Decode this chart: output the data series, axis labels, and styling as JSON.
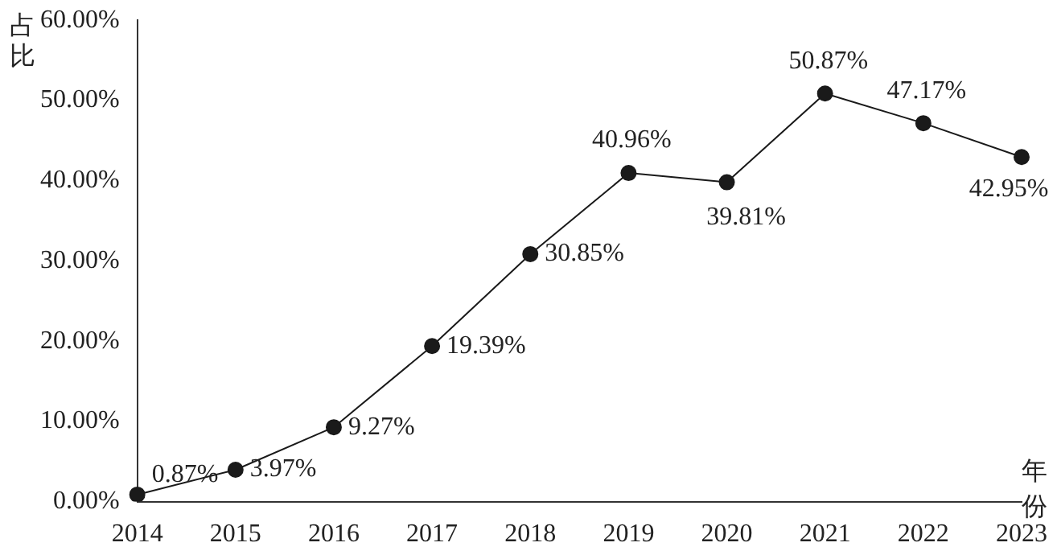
{
  "chart_data": {
    "type": "line",
    "xlabel": "年份",
    "ylabel": "占比",
    "categories": [
      "2014",
      "2015",
      "2016",
      "2017",
      "2018",
      "2019",
      "2020",
      "2021",
      "2022",
      "2023"
    ],
    "series": [
      {
        "color": "#1a1a1a",
        "values": [
          0.87,
          3.97,
          9.27,
          19.39,
          30.85,
          40.96,
          39.81,
          50.87,
          47.17,
          42.95
        ]
      }
    ],
    "ylim": [
      0,
      60
    ],
    "yticks": [
      {
        "value": 0,
        "label": "0.00%"
      },
      {
        "value": 10,
        "label": "10.00%"
      },
      {
        "value": 20,
        "label": "20.00%"
      },
      {
        "value": 30,
        "label": "30.00%"
      },
      {
        "value": 40,
        "label": "40.00%"
      },
      {
        "value": 50,
        "label": "50.00%"
      },
      {
        "value": 60,
        "label": "60.00%"
      }
    ],
    "value_labels": [
      "0.87%",
      "3.97%",
      "9.27%",
      "19.39%",
      "30.85%",
      "40.96%",
      "39.81%",
      "50.87%",
      "47.17%",
      "42.95%"
    ],
    "marker": "circle",
    "line_style": "solid"
  }
}
